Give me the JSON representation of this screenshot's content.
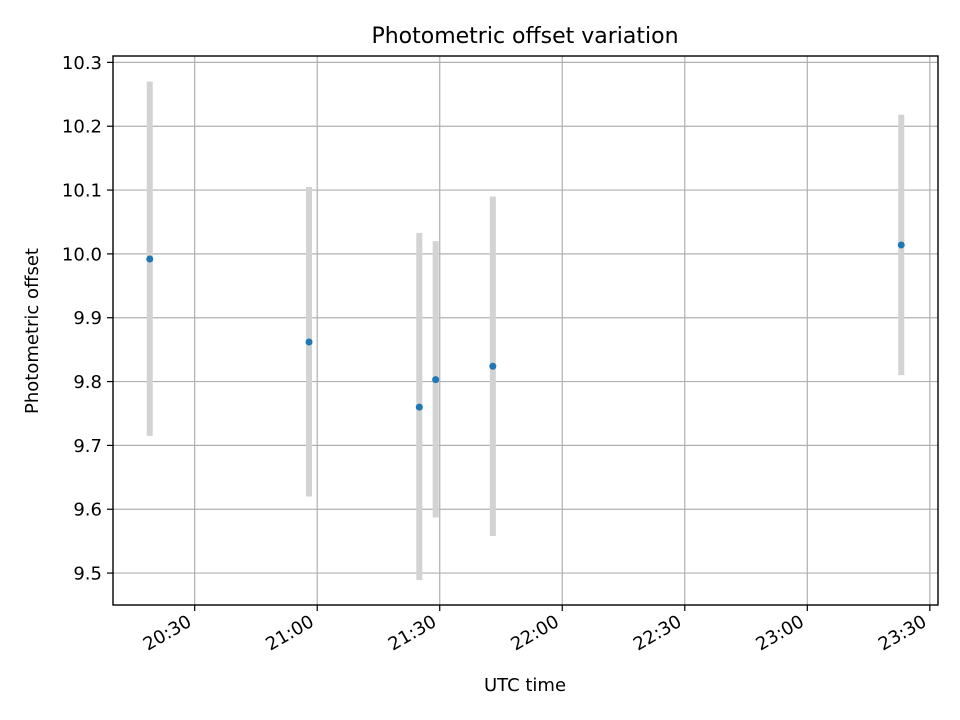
{
  "chart_data": {
    "type": "scatter",
    "title": "Photometric offset variation",
    "xlabel": "UTC time",
    "ylabel": "Photometric offset",
    "x_ticks": [
      "20:30",
      "21:00",
      "21:30",
      "22:00",
      "22:30",
      "23:00",
      "23:30"
    ],
    "y_ticks": [
      "9.5",
      "9.6",
      "9.7",
      "9.8",
      "9.9",
      "10.0",
      "10.1",
      "10.2",
      "10.3"
    ],
    "xlim": [
      "20:10",
      "23:32"
    ],
    "ylim": [
      9.45,
      10.31
    ],
    "grid": true,
    "points": [
      {
        "x": "20:19",
        "y": 9.992,
        "y_low": 9.715,
        "y_high": 10.27
      },
      {
        "x": "20:58",
        "y": 9.862,
        "y_low": 9.62,
        "y_high": 10.105
      },
      {
        "x": "21:25",
        "y": 9.76,
        "y_low": 9.489,
        "y_high": 10.033
      },
      {
        "x": "21:29",
        "y": 9.803,
        "y_low": 9.587,
        "y_high": 10.02
      },
      {
        "x": "21:43",
        "y": 9.824,
        "y_low": 9.558,
        "y_high": 10.09
      },
      {
        "x": "23:23",
        "y": 10.014,
        "y_low": 9.81,
        "y_high": 10.218
      }
    ],
    "colors": {
      "marker": "#1f77b4",
      "errorbar": "#d3d3d3",
      "grid": "#b0b0b0"
    }
  }
}
